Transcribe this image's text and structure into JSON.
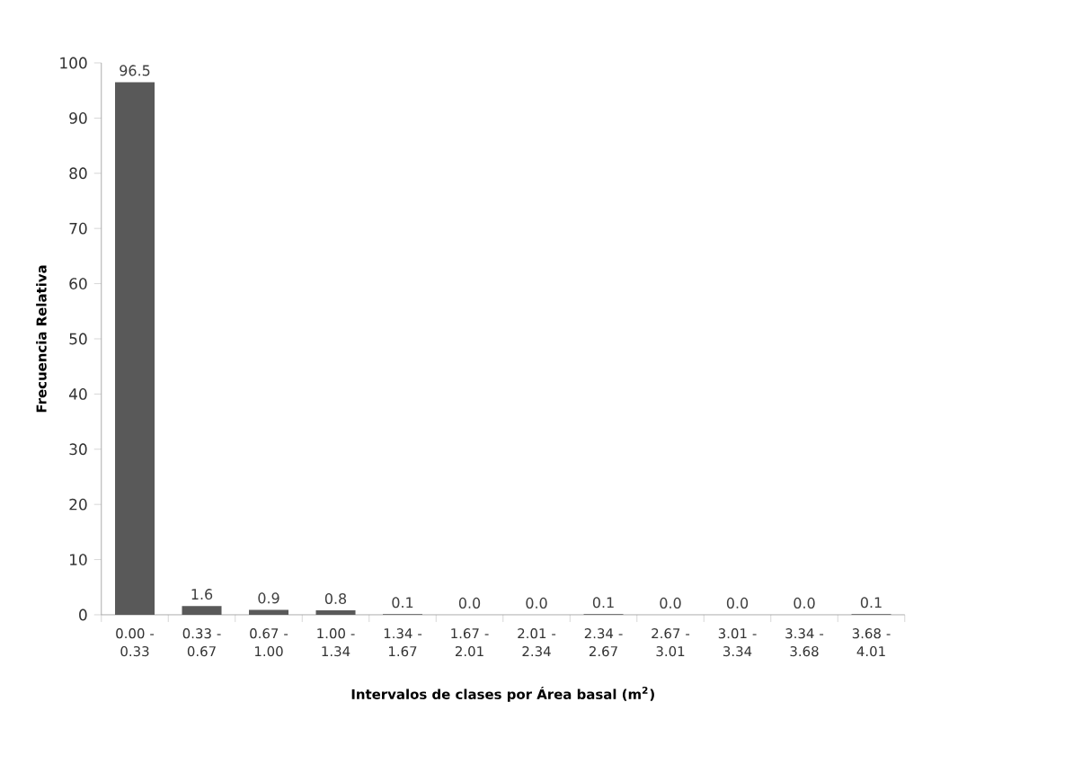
{
  "chart_data": {
    "type": "bar",
    "xlabel": "Intervalos de clases por Área basal (m$^{2}$)",
    "ylabel": "Frecuencia Relativa",
    "categories": [
      "0.00 - 0.33",
      "0.33 - 0.67",
      "0.67 - 1.00",
      "1.00 - 1.34",
      "1.34 - 1.67",
      "1.67 - 2.01",
      "2.01 - 2.34",
      "2.34 - 2.67",
      "2.67 - 3.01",
      "3.01 - 3.34",
      "3.34 - 3.68",
      "3.68 - 4.01"
    ],
    "values": [
      96.5,
      1.6,
      0.9,
      0.8,
      0.1,
      0.0,
      0.0,
      0.1,
      0.0,
      0.0,
      0.0,
      0.1
    ],
    "value_labels": [
      "96.5",
      "1.6",
      "0.9",
      "0.8",
      "0.1",
      "0.0",
      "0.0",
      "0.1",
      "0.0",
      "0.0",
      "0.0",
      "0.1"
    ],
    "color": "#595959",
    "ylim": [
      0,
      100
    ],
    "yticks": [
      0,
      10,
      20,
      30,
      40,
      50,
      60,
      70,
      80,
      90,
      100
    ],
    "grid": false
  }
}
